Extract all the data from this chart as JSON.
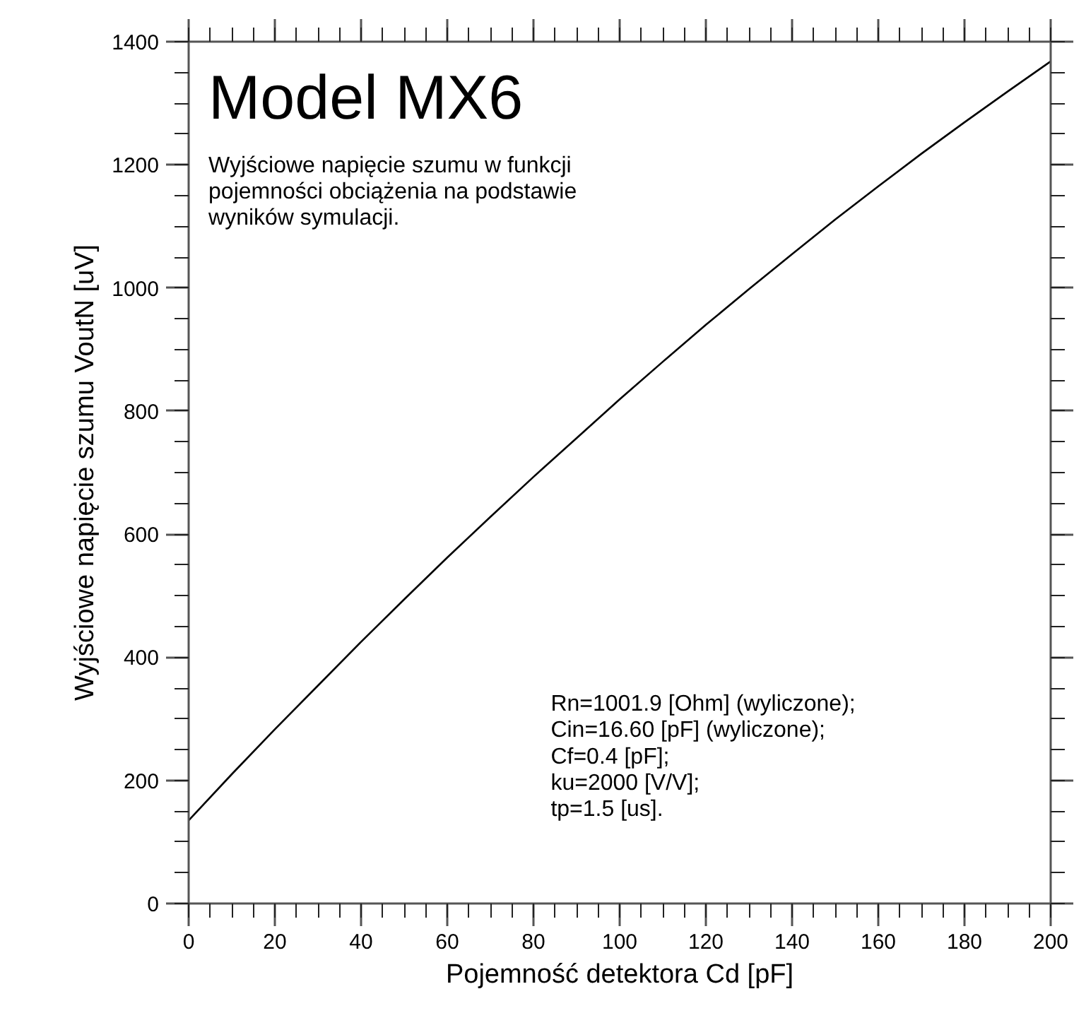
{
  "chart_data": {
    "type": "line",
    "title": "Model MX6",
    "subtitle": "Wyjściowe napięcie szumu w funkcji\npojemności obciążenia na podstawie\nwyników symulacji.",
    "xlabel": "Pojemność detektora Cd [pF]",
    "ylabel": "Wyjściowe napięcie szumu VoutN [uV]",
    "x": [
      0,
      10,
      20,
      30,
      40,
      50,
      60,
      70,
      80,
      90,
      100,
      110,
      120,
      130,
      140,
      150,
      160,
      170,
      180,
      190,
      200
    ],
    "series": [
      {
        "color": "#000000",
        "values": [
          135,
          210,
          283,
          354,
          425,
          494,
          562,
          628,
          693,
          756,
          819,
          880,
          940,
          998,
          1055,
          1111,
          1165,
          1218,
          1269,
          1319,
          1368
        ]
      }
    ],
    "xlim": [
      0,
      200
    ],
    "ylim": [
      0,
      1400
    ],
    "xticks": [
      0,
      20,
      40,
      60,
      80,
      100,
      120,
      140,
      160,
      180,
      200
    ],
    "yticks": [
      0,
      200,
      400,
      600,
      800,
      1000,
      1200,
      1400
    ],
    "annotations": [
      "Rn=1001.9 [Ohm] (wyliczone);",
      "Cin=16.60 [pF] (wyliczone);",
      "Cf=0.4 [pF];",
      "ku=2000 [V/V];",
      "tp=1.5 [us]."
    ],
    "grid": false,
    "line_style": "solid"
  }
}
